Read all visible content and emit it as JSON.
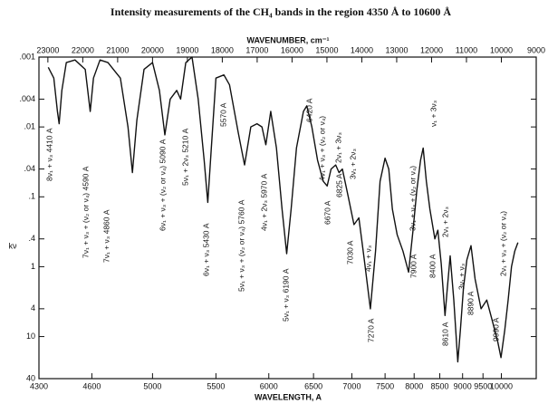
{
  "chart_data": {
    "type": "line",
    "title": "Intensity measurements of the CH₄ bands in the region 4350 Å to 10600 Å",
    "x_label": "WAVELENGTH, A",
    "x2_label": "WAVENUMBER, cm⁻¹",
    "y_label": "kν",
    "log_y": true,
    "y_inverted": true,
    "color": "#111111",
    "x": [
      4350,
      4380,
      4400,
      4410,
      4425,
      4450,
      4500,
      4560,
      4590,
      4610,
      4650,
      4700,
      4780,
      4830,
      4860,
      4890,
      4940,
      5000,
      5050,
      5090,
      5130,
      5180,
      5210,
      5250,
      5300,
      5350,
      5400,
      5430,
      5460,
      5500,
      5570,
      5620,
      5700,
      5760,
      5820,
      5880,
      5930,
      5970,
      6020,
      6080,
      6140,
      6190,
      6240,
      6300,
      6380,
      6420,
      6480,
      6550,
      6620,
      6670,
      6720,
      6780,
      6825,
      6870,
      6950,
      7030,
      7100,
      7180,
      7270,
      7350,
      7420,
      7500,
      7560,
      7620,
      7700,
      7800,
      7900,
      7980,
      8050,
      8120,
      8170,
      8230,
      8300,
      8400,
      8460,
      8530,
      8610,
      8660,
      8720,
      8800,
      8890,
      8950,
      9020,
      9100,
      9200,
      9300,
      9450,
      9600,
      9750,
      9900,
      9990,
      10100,
      10200,
      10300,
      10400,
      10500
    ],
    "values": [
      0.0014,
      0.002,
      0.006,
      0.009,
      0.003,
      0.0012,
      0.0011,
      0.0015,
      0.006,
      0.002,
      0.0011,
      0.0012,
      0.002,
      0.01,
      0.045,
      0.008,
      0.0015,
      0.0012,
      0.003,
      0.013,
      0.004,
      0.003,
      0.004,
      0.0012,
      0.001,
      0.004,
      0.03,
      0.12,
      0.02,
      0.002,
      0.0018,
      0.0025,
      0.012,
      0.035,
      0.01,
      0.009,
      0.01,
      0.018,
      0.006,
      0.02,
      0.15,
      0.65,
      0.15,
      0.02,
      0.006,
      0.005,
      0.01,
      0.03,
      0.06,
      0.07,
      0.04,
      0.035,
      0.045,
      0.04,
      0.1,
      0.25,
      0.2,
      0.8,
      4,
      0.6,
      0.06,
      0.028,
      0.04,
      0.15,
      0.35,
      0.6,
      1.2,
      0.3,
      0.08,
      0.03,
      0.02,
      0.06,
      0.15,
      0.4,
      0.3,
      0.9,
      5,
      2,
      0.7,
      3,
      23,
      8,
      2,
      0.8,
      0.5,
      1.5,
      4,
      3,
      6,
      12,
      20,
      8,
      3,
      1,
      0.6,
      0.45
    ],
    "xlim": [
      4300,
      11111
    ],
    "xticks": [
      4300,
      4600,
      5000,
      5500,
      6000,
      6500,
      7000,
      7500,
      8000,
      8500,
      9000,
      9500,
      10000
    ],
    "x2lim": [
      23256,
      9000
    ],
    "x2ticks": [
      23000,
      22000,
      21000,
      20000,
      19000,
      18000,
      17000,
      16000,
      15000,
      14000,
      13000,
      12000,
      11000,
      10000,
      9000
    ],
    "ylim": [
      0.001,
      40
    ],
    "yticks": [
      {
        "value": 0.001,
        "label": ".001"
      },
      {
        "value": 0.004,
        "label": ".004"
      },
      {
        "value": 0.01,
        "label": ".01"
      },
      {
        "value": 0.04,
        "label": ".04"
      },
      {
        "value": 0.1,
        "label": ".1"
      },
      {
        "value": 0.4,
        "label": ".4"
      },
      1,
      4,
      10,
      40
    ],
    "annotations": [
      "8ν₁ + ν₃  4410 A",
      "7ν₁ + ν₃ + (ν₂ or ν₄)  4590 A",
      "7ν₁ + ν₃ 4860 A",
      "6ν₁ + ν₃ + (ν₂ or ν₄) 5090 A",
      "5ν₁ + 2ν₃ 5210 A",
      "6ν₁ + ν₃ 5430 A",
      "5570 A",
      "5ν₁ + ν₃ + (ν₂ or ν₄) 5760 A",
      "4ν₁ + 2ν₃ 5970 A",
      "5ν₁ + ν₃ 6190 A",
      "6420 A",
      "4ν₁ + ν₃ + (ν₂ or ν₄)",
      "6670 A",
      "2ν₁ + 3ν₃",
      "6825 A",
      "3ν₁ + 2ν₃",
      "7030 A",
      "4ν₁ + ν₃",
      "7270 A",
      "3ν₁ + ν₃ + (ν₂ or ν₄)",
      "7900 A",
      "ν₁ + 3ν₃",
      "8400 A",
      "2ν₁ + 2ν₃",
      "8610 A",
      "3ν₁ + ν₃",
      "8890 A",
      "2ν₁ + ν₃ + (ν₂ or ν₄)",
      "9990 A"
    ]
  }
}
